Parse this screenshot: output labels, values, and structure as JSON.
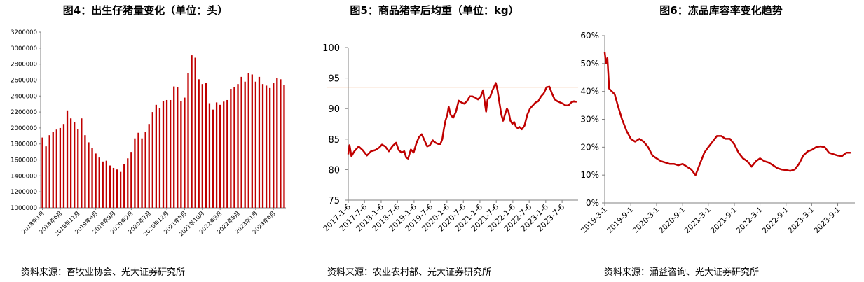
{
  "colors": {
    "series": "#c00000",
    "reference_line": "#e8803a",
    "axis": "#808080",
    "text": "#000000"
  },
  "chart_data": [
    {
      "type": "bar",
      "title": "图4：出生仔猪量变化（单位：头）",
      "source": "资料来源：畜牧业协会、光大证券研究所",
      "xlabel": "",
      "ylabel": "",
      "ylim": [
        1000000,
        3200000
      ],
      "ytick_values": [
        1000000,
        1200000,
        1400000,
        1600000,
        1800000,
        2000000,
        2200000,
        2400000,
        2600000,
        2800000,
        3000000,
        3200000
      ],
      "yticks": [
        "1000000",
        "1200000",
        "1400000",
        "1600000",
        "1800000",
        "2000000",
        "2200000",
        "2400000",
        "2600000",
        "2800000",
        "3000000",
        "3200000"
      ],
      "xticks": [
        "2018年1月",
        "2018年6月",
        "2018年11月",
        "2019年4月",
        "2019年9月",
        "2020年2月",
        "2020年7月",
        "2020年12月",
        "2021年5月",
        "2021年10月",
        "2022年3月",
        "2022年8月",
        "2023年1月",
        "2023年6月"
      ],
      "xtick_index": [
        0,
        5,
        10,
        15,
        20,
        25,
        30,
        35,
        40,
        45,
        50,
        55,
        60,
        65
      ],
      "grid": false,
      "series": [
        {
          "values": [
            1880000,
            1770000,
            1910000,
            1950000,
            1980000,
            2000000,
            2050000,
            2220000,
            2120000,
            2070000,
            1990000,
            2120000,
            1910000,
            1820000,
            1750000,
            1680000,
            1630000,
            1580000,
            1590000,
            1530000,
            1500000,
            1480000,
            1450000,
            1550000,
            1620000,
            1700000,
            1870000,
            1940000,
            1870000,
            1950000,
            2050000,
            2200000,
            2290000,
            2250000,
            2340000,
            2350000,
            2350000,
            2520000,
            2510000,
            2340000,
            2380000,
            2690000,
            2910000,
            2880000,
            2610000,
            2550000,
            2560000,
            2310000,
            2230000,
            2320000,
            2290000,
            2330000,
            2350000,
            2490000,
            2510000,
            2550000,
            2640000,
            2580000,
            2690000,
            2670000,
            2580000,
            2640000,
            2550000,
            2530000,
            2500000,
            2560000,
            2630000,
            2610000,
            2540000
          ]
        }
      ]
    },
    {
      "type": "line",
      "title": "图5：商品猪宰后均重（单位：kg）",
      "source": "资料来源：农业农村部、光大证券研究所",
      "xlabel": "",
      "ylabel": "",
      "ylim": [
        75,
        100
      ],
      "yticks": [
        75,
        80,
        85,
        90,
        95,
        100
      ],
      "xlim": [
        "2017-01-06",
        "2023-12-31"
      ],
      "xticks": [
        "2017-1-6",
        "2017-7-6",
        "2018-1-6",
        "2018-7-6",
        "2019-1-6",
        "2019-7-6",
        "2020-1-6",
        "2020-7-6",
        "2021-1-6",
        "2021-7-6",
        "2022-1-6",
        "2022-7-6",
        "2023-1-6",
        "2023-7-6"
      ],
      "xtick_dates": [
        "2017-01-06",
        "2017-07-06",
        "2018-01-06",
        "2018-07-06",
        "2019-01-06",
        "2019-07-06",
        "2020-01-06",
        "2020-07-06",
        "2021-01-06",
        "2021-07-06",
        "2022-01-06",
        "2022-07-06",
        "2023-01-06",
        "2023-07-06"
      ],
      "reference_line": 93.5,
      "grid": false,
      "series": [
        {
          "x": [
            "2017-01-06",
            "2017-01-20",
            "2017-02-10",
            "2017-03-15",
            "2017-05-01",
            "2017-06-15",
            "2017-08-01",
            "2017-09-15",
            "2017-11-01",
            "2017-12-15",
            "2018-01-15",
            "2018-02-20",
            "2018-04-01",
            "2018-05-15",
            "2018-06-20",
            "2018-07-20",
            "2018-08-20",
            "2018-09-20",
            "2018-10-10",
            "2018-11-01",
            "2018-12-01",
            "2019-01-01",
            "2019-02-01",
            "2019-03-01",
            "2019-04-01",
            "2019-05-01",
            "2019-06-01",
            "2019-07-01",
            "2019-08-01",
            "2019-09-01",
            "2019-10-01",
            "2019-10-25",
            "2019-11-15",
            "2019-12-01",
            "2019-12-20",
            "2020-01-10",
            "2020-01-25",
            "2020-02-15",
            "2020-03-15",
            "2020-04-15",
            "2020-05-15",
            "2020-06-15",
            "2020-07-15",
            "2020-08-15",
            "2020-09-15",
            "2020-10-15",
            "2020-11-15",
            "2020-12-15",
            "2021-01-15",
            "2021-02-10",
            "2021-02-25",
            "2021-03-15",
            "2021-04-01",
            "2021-05-01",
            "2021-05-25",
            "2021-06-10",
            "2021-07-01",
            "2021-07-20",
            "2021-08-10",
            "2021-09-01",
            "2021-09-20",
            "2021-10-10",
            "2021-11-01",
            "2021-11-20",
            "2021-12-10",
            "2022-01-01",
            "2022-01-20",
            "2022-02-10",
            "2022-03-01",
            "2022-03-20",
            "2022-04-15",
            "2022-05-15",
            "2022-06-15",
            "2022-07-15",
            "2022-08-15",
            "2022-09-15",
            "2022-10-15",
            "2022-11-15",
            "2022-12-15",
            "2023-01-15",
            "2023-02-15",
            "2023-03-15",
            "2023-04-15",
            "2023-05-15",
            "2023-06-15",
            "2023-07-15",
            "2023-08-15",
            "2023-09-15",
            "2023-10-15",
            "2023-11-15",
            "2023-12-15"
          ],
          "values": [
            82.5,
            84.0,
            82.2,
            83.0,
            83.8,
            83.2,
            82.3,
            83.0,
            83.2,
            83.6,
            84.1,
            83.8,
            83.0,
            83.9,
            84.4,
            83.2,
            82.8,
            83.0,
            82.0,
            81.8,
            83.3,
            82.8,
            84.3,
            85.3,
            85.8,
            84.8,
            83.8,
            84.0,
            84.8,
            84.4,
            84.2,
            84.2,
            85.0,
            86.5,
            88.0,
            89.0,
            90.3,
            89.0,
            88.5,
            89.5,
            91.3,
            91.0,
            90.8,
            91.2,
            92.0,
            92.0,
            91.8,
            91.5,
            92.0,
            93.0,
            91.3,
            89.5,
            91.5,
            92.0,
            93.0,
            93.5,
            94.2,
            93.0,
            91.0,
            89.0,
            88.0,
            89.0,
            90.0,
            89.5,
            88.0,
            87.5,
            87.8,
            87.0,
            86.8,
            87.0,
            86.6,
            87.2,
            89.0,
            90.0,
            90.5,
            91.0,
            91.2,
            92.0,
            92.5,
            93.5,
            93.6,
            92.5,
            91.5,
            91.2,
            91.0,
            90.8,
            90.5,
            90.5,
            91.0,
            91.2,
            91.1
          ]
        }
      ]
    },
    {
      "type": "line",
      "title": "图6：冻品库容率变化趋势",
      "source": "资料来源：涌益咨询、光大证券研究所",
      "xlabel": "",
      "ylabel": "",
      "ylim": [
        0,
        60
      ],
      "unit": "%",
      "yticks": [
        "0%",
        "10%",
        "20%",
        "30%",
        "40%",
        "50%",
        "60%"
      ],
      "ytick_values": [
        0,
        10,
        20,
        30,
        40,
        50,
        60
      ],
      "xlim": [
        "2019-03-01",
        "2023-12-31"
      ],
      "xticks": [
        "2019-3-1",
        "2019-9-1",
        "2020-3-1",
        "2020-9-1",
        "2021-3-1",
        "2021-9-1",
        "2022-3-1",
        "2022-9-1",
        "2023-3-1",
        "2023-9-1"
      ],
      "xtick_dates": [
        "2019-03-01",
        "2019-09-01",
        "2020-03-01",
        "2020-09-01",
        "2021-03-01",
        "2021-09-01",
        "2022-03-01",
        "2022-09-01",
        "2023-03-01",
        "2023-09-01"
      ],
      "grid": false,
      "series": [
        {
          "x": [
            "2019-03-01",
            "2019-03-10",
            "2019-03-20",
            "2019-04-01",
            "2019-04-20",
            "2019-05-10",
            "2019-06-01",
            "2019-07-01",
            "2019-08-01",
            "2019-09-01",
            "2019-10-01",
            "2019-11-01",
            "2019-12-01",
            "2020-01-01",
            "2020-02-01",
            "2020-03-01",
            "2020-04-01",
            "2020-05-01",
            "2020-06-01",
            "2020-07-01",
            "2020-08-01",
            "2020-09-01",
            "2020-10-01",
            "2020-11-01",
            "2020-12-01",
            "2021-01-01",
            "2021-02-01",
            "2021-02-15",
            "2021-03-01",
            "2021-04-01",
            "2021-05-01",
            "2021-06-01",
            "2021-07-01",
            "2021-08-01",
            "2021-09-01",
            "2021-10-01",
            "2021-11-01",
            "2021-12-01",
            "2022-01-01",
            "2022-02-01",
            "2022-03-01",
            "2022-04-01",
            "2022-05-01",
            "2022-06-01",
            "2022-07-01",
            "2022-08-01",
            "2022-09-01",
            "2022-10-01",
            "2022-11-01",
            "2022-12-01",
            "2023-01-01",
            "2023-02-01",
            "2023-03-01",
            "2023-04-01",
            "2023-05-01",
            "2023-06-01",
            "2023-07-01",
            "2023-08-01",
            "2023-09-01",
            "2023-10-01",
            "2023-11-01",
            "2023-12-01"
          ],
          "values": [
            54,
            50,
            52,
            41,
            40,
            39,
            35,
            30,
            26,
            23,
            22,
            23,
            22,
            20,
            17,
            16,
            15,
            14.5,
            14,
            14,
            13.5,
            14,
            13,
            12,
            10,
            14,
            18,
            19,
            20,
            22,
            24,
            24,
            23,
            23,
            21,
            18,
            16,
            15,
            13,
            15,
            16,
            15,
            14.5,
            13.5,
            12.5,
            12,
            11.8,
            11.5,
            12,
            14,
            17,
            18.5,
            19,
            20,
            20.3,
            20,
            18,
            17.5,
            17,
            16.8,
            18,
            18
          ]
        }
      ]
    }
  ]
}
